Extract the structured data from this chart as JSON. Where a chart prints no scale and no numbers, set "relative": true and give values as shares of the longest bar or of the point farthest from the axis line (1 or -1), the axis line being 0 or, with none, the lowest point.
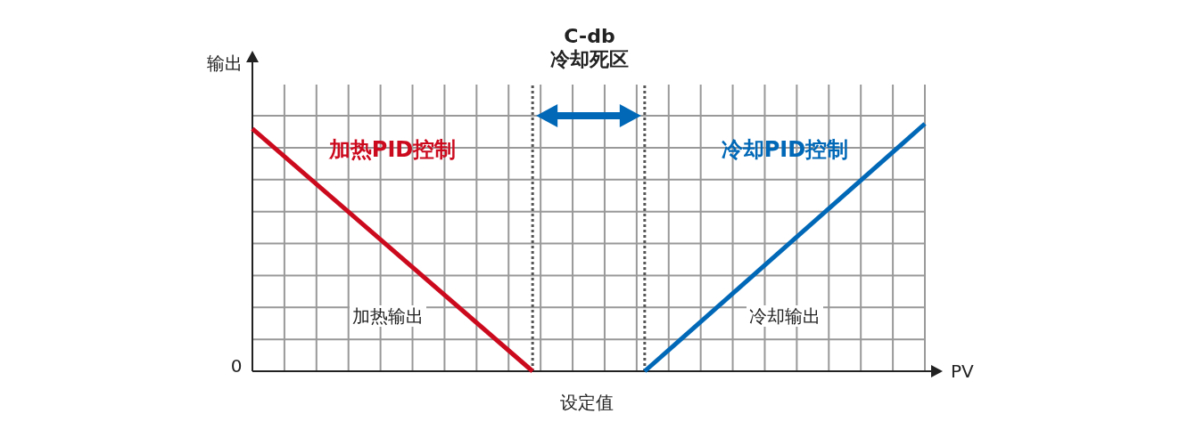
{
  "chart_data": {
    "type": "line",
    "relative": true,
    "xlabel": "PV",
    "ylabel": "输出",
    "grid": true,
    "categories": [
      null,
      null,
      null,
      null,
      null,
      null,
      null,
      null,
      null,
      null,
      null,
      null,
      null,
      null,
      null,
      null,
      null,
      null,
      null,
      null,
      null,
      null,
      null,
      null,
      null
    ],
    "series": [
      {
        "name": "加热PID控制",
        "color": "#cc0a1e",
        "values": [
          0.98,
          null,
          null,
          null,
          null,
          null,
          null,
          null,
          null,
          null,
          0,
          null,
          null,
          null,
          null,
          null,
          null,
          null,
          null,
          null,
          null,
          null,
          null,
          null,
          null
        ]
      },
      {
        "name": "冷却PID控制",
        "color": "#0068b7",
        "values": [
          null,
          null,
          null,
          null,
          null,
          null,
          null,
          null,
          null,
          null,
          null,
          null,
          null,
          null,
          0,
          null,
          null,
          null,
          null,
          null,
          null,
          null,
          null,
          null,
          1
        ]
      }
    ],
    "annotations": [
      "C-db",
      "冷却死区",
      "加热输出",
      "冷却输出",
      "设定值",
      "0"
    ]
  }
}
